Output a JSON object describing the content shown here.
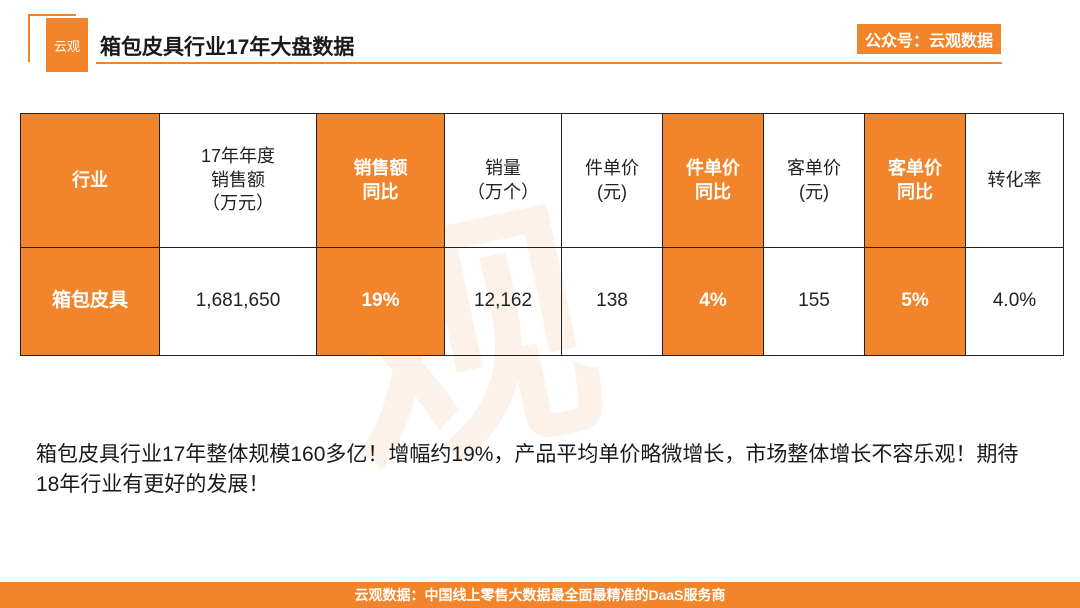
{
  "header": {
    "logo_text": "云观",
    "title_bold": "箱包皮具",
    "title_rest": "行业17年大盘数据",
    "brand_tag": "公众号：云观数据"
  },
  "table": {
    "headers": [
      "行业",
      "17年年度\n销售额\n（万元）",
      "销售额\n同比",
      "销量\n（万个）",
      "件单价\n(元)",
      "件单价\n同比",
      "客单价\n(元)",
      "客单价\n同比",
      "转化率"
    ],
    "row": [
      "箱包皮具",
      "1,681,650",
      "19%",
      "12,162",
      "138",
      "4%",
      "155",
      "5%",
      "4.0%"
    ]
  },
  "summary": "箱包皮具行业17年整体规模160多亿！增幅约19%，产品平均单价略微增长，市场整体增长不容乐观！期待18年行业有更好的发展！",
  "footer": "云观数据：中国线上零售大数据最全面最精准的DaaS服务商",
  "colors": {
    "accent": "#f2852b",
    "text": "#222222"
  }
}
